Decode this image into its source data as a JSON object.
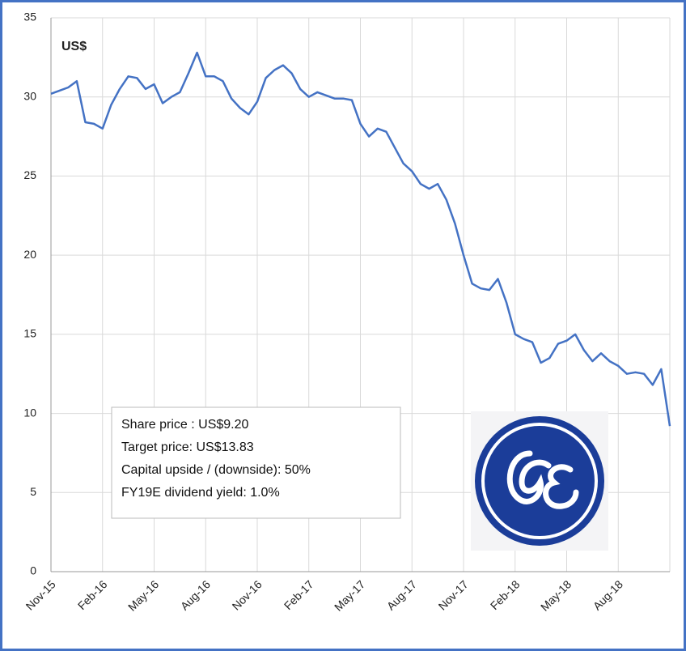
{
  "chart_data": {
    "type": "line",
    "y_label": "US$",
    "annotations": [
      "Share price :  US$9.20",
      "Target price:  US$13.83",
      "Capital upside / (downside): 50%",
      "FY19E dividend yield: 1.0%"
    ],
    "categories": [
      "Nov-15",
      null,
      null,
      null,
      null,
      null,
      "Feb-16",
      null,
      null,
      null,
      null,
      null,
      "May-16",
      null,
      null,
      null,
      null,
      null,
      "Aug-16",
      null,
      null,
      null,
      null,
      null,
      "Nov-16",
      null,
      null,
      null,
      null,
      null,
      "Feb-17",
      null,
      null,
      null,
      null,
      null,
      "May-17",
      null,
      null,
      null,
      null,
      null,
      "Aug-17",
      null,
      null,
      null,
      null,
      null,
      "Nov-17",
      null,
      null,
      null,
      null,
      null,
      "Feb-18",
      null,
      null,
      null,
      null,
      null,
      "May-18",
      null,
      null,
      null,
      null,
      null,
      "Aug-18",
      null,
      null,
      null,
      null,
      null,
      null
    ],
    "values": [
      30.2,
      30.4,
      30.6,
      31.0,
      28.4,
      28.3,
      28.0,
      29.5,
      30.5,
      31.3,
      31.2,
      30.5,
      30.8,
      29.6,
      30.0,
      30.3,
      31.5,
      32.8,
      31.3,
      31.3,
      31.0,
      29.9,
      29.3,
      28.9,
      29.7,
      31.2,
      31.7,
      32.0,
      31.5,
      30.5,
      30.0,
      30.3,
      30.1,
      29.9,
      29.9,
      29.8,
      28.3,
      27.5,
      28.0,
      27.8,
      26.8,
      25.8,
      25.3,
      24.5,
      24.2,
      24.5,
      23.5,
      22.0,
      20.0,
      18.2,
      17.9,
      17.8,
      18.5,
      17.0,
      15.0,
      14.7,
      14.5,
      13.2,
      13.5,
      14.4,
      14.6,
      15.0,
      14.0,
      13.3,
      13.8,
      13.3,
      13.0,
      12.5,
      12.6,
      12.5,
      11.8,
      12.8,
      9.2
    ],
    "color": "#4472c4",
    "ylim": [
      0,
      35
    ],
    "yticks": [
      0,
      5,
      10,
      15,
      20,
      25,
      30,
      35
    ],
    "grid": true
  }
}
